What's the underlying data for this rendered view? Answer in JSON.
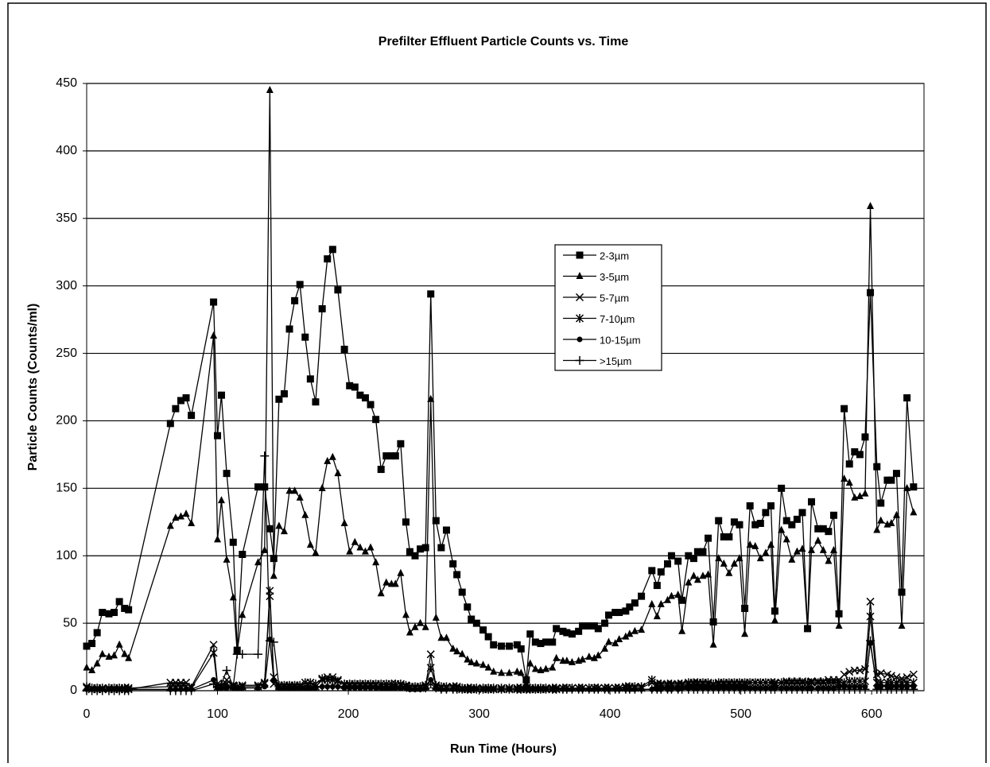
{
  "chart_data": {
    "type": "line",
    "title": "Prefilter Effluent Particle Counts vs. Time",
    "x_label": "Run Time (Hours)",
    "y_label": "Particle Counts (Counts/ml)",
    "xlim": [
      0,
      640
    ],
    "xticks": [
      0,
      100,
      200,
      300,
      400,
      500,
      600
    ],
    "ylim": [
      0,
      450
    ],
    "yticks": [
      0,
      50,
      100,
      150,
      200,
      250,
      300,
      350,
      400,
      450
    ],
    "grid": true,
    "legend": "center",
    "x": [
      0,
      4,
      8,
      12,
      17,
      21,
      25,
      29,
      32,
      64,
      68,
      72,
      76,
      80,
      97,
      100,
      103,
      107,
      112,
      115,
      119,
      131,
      136,
      140,
      143,
      147,
      151,
      155,
      159,
      163,
      167,
      171,
      175,
      180,
      184,
      188,
      192,
      197,
      201,
      205,
      209,
      213,
      217,
      221,
      225,
      229,
      233,
      236,
      240,
      244,
      247,
      251,
      255,
      259,
      263,
      267,
      271,
      275,
      280,
      283,
      287,
      291,
      294,
      298,
      303,
      307,
      311,
      317,
      323,
      329,
      332,
      336,
      339,
      343,
      347,
      351,
      356,
      359,
      364,
      367,
      371,
      376,
      379,
      384,
      388,
      391,
      396,
      399,
      404,
      407,
      412,
      415,
      419,
      424,
      432,
      436,
      439,
      444,
      447,
      452,
      455,
      460,
      464,
      467,
      471,
      475,
      479,
      483,
      487,
      491,
      495,
      499,
      503,
      507,
      511,
      515,
      519,
      523,
      526,
      531,
      535,
      539,
      543,
      547,
      551,
      554,
      559,
      563,
      567,
      571,
      575,
      579,
      583,
      587,
      591,
      595,
      599,
      604,
      607,
      612,
      615,
      619,
      623,
      627,
      632
    ],
    "series": [
      {
        "name": "2-3µm",
        "color": "#000000",
        "marker": "square",
        "values": [
          33,
          35,
          43,
          58,
          57,
          58,
          66,
          61,
          60,
          198,
          209,
          215,
          217,
          204,
          288,
          189,
          219,
          161,
          110,
          30,
          101,
          151,
          151,
          120,
          98,
          216,
          220,
          268,
          289,
          301,
          262,
          231,
          214,
          283,
          320,
          327,
          297,
          253,
          226,
          225,
          219,
          217,
          212,
          201,
          164,
          174,
          174,
          174,
          183,
          125,
          103,
          100,
          105,
          106,
          294,
          126,
          106,
          119,
          94,
          86,
          73,
          62,
          53,
          50,
          45,
          40,
          34,
          33,
          33,
          34,
          31,
          8,
          42,
          36,
          35,
          36,
          36,
          46,
          44,
          43,
          42,
          44,
          48,
          48,
          48,
          46,
          50,
          56,
          58,
          58,
          59,
          62,
          65,
          70,
          89,
          78,
          88,
          94,
          100,
          96,
          67,
          100,
          98,
          103,
          103,
          113,
          51,
          126,
          114,
          114,
          125,
          123,
          61,
          137,
          123,
          124,
          132,
          137,
          59,
          150,
          126,
          123,
          127,
          132,
          46,
          140,
          120,
          120,
          118,
          130,
          57,
          209,
          168,
          177,
          175,
          188,
          295,
          166,
          139,
          156,
          156,
          161,
          73,
          217,
          151
        ]
      },
      {
        "name": "3-5µm",
        "color": "#000000",
        "marker": "triangle",
        "values": [
          17,
          15,
          20,
          27,
          25,
          26,
          34,
          27,
          24,
          122,
          128,
          129,
          131,
          124,
          263,
          112,
          141,
          97,
          69,
          29,
          56,
          95,
          104,
          445,
          85,
          122,
          118,
          148,
          148,
          143,
          130,
          108,
          102,
          150,
          170,
          173,
          161,
          124,
          103,
          110,
          106,
          103,
          106,
          95,
          72,
          80,
          79,
          79,
          87,
          56,
          43,
          47,
          50,
          47,
          216,
          54,
          39,
          39,
          31,
          29,
          27,
          23,
          21,
          20,
          19,
          17,
          14,
          13,
          13,
          14,
          13,
          5,
          20,
          16,
          15,
          16,
          17,
          24,
          22,
          22,
          21,
          22,
          23,
          25,
          24,
          26,
          31,
          36,
          35,
          38,
          40,
          42,
          44,
          45,
          64,
          55,
          64,
          67,
          70,
          71,
          44,
          80,
          85,
          82,
          85,
          86,
          34,
          98,
          94,
          87,
          94,
          98,
          42,
          108,
          107,
          98,
          102,
          108,
          52,
          119,
          112,
          97,
          103,
          105,
          46,
          104,
          111,
          104,
          96,
          104,
          48,
          157,
          154,
          143,
          144,
          146,
          359,
          119,
          126,
          123,
          124,
          130,
          48,
          150,
          132
        ]
      },
      {
        "name": "5-7µm",
        "color": "#000000",
        "marker": "x",
        "values": [
          2,
          1,
          1,
          1,
          1,
          1,
          1,
          1,
          1,
          6,
          6,
          6,
          6,
          3,
          34,
          5,
          3,
          8,
          4,
          3,
          4,
          4,
          5,
          70,
          5,
          3,
          3,
          3,
          3,
          3,
          3,
          3,
          3,
          8,
          10,
          10,
          8,
          4,
          4,
          4,
          4,
          4,
          4,
          4,
          3,
          3,
          3,
          3,
          4,
          3,
          2,
          2,
          2,
          3,
          27,
          3,
          2,
          2,
          2,
          2,
          1,
          1,
          1,
          1,
          1,
          1,
          1,
          1,
          1,
          1,
          1,
          1,
          1,
          1,
          1,
          1,
          1,
          1,
          2,
          2,
          2,
          2,
          2,
          2,
          2,
          2,
          2,
          2,
          2,
          2,
          2,
          2,
          2,
          2,
          6,
          4,
          4,
          4,
          4,
          4,
          4,
          5,
          5,
          5,
          5,
          5,
          4,
          5,
          5,
          5,
          5,
          5,
          5,
          6,
          6,
          6,
          6,
          6,
          5,
          6,
          7,
          7,
          7,
          7,
          6,
          7,
          7,
          7,
          8,
          8,
          8,
          12,
          14,
          15,
          15,
          16,
          66,
          12,
          13,
          12,
          11,
          10,
          9,
          10,
          12
        ]
      },
      {
        "name": "7-10µm",
        "color": "#000000",
        "marker": "asterisk",
        "values": [
          3,
          2,
          2,
          2,
          2,
          2,
          2,
          2,
          2,
          3,
          3,
          3,
          3,
          2,
          28,
          3,
          3,
          5,
          3,
          3,
          3,
          3,
          6,
          74,
          10,
          4,
          4,
          4,
          4,
          4,
          6,
          6,
          5,
          9,
          8,
          8,
          7,
          5,
          5,
          5,
          5,
          5,
          5,
          5,
          5,
          5,
          5,
          5,
          5,
          4,
          3,
          3,
          3,
          4,
          17,
          4,
          3,
          3,
          3,
          3,
          2,
          2,
          2,
          2,
          2,
          2,
          2,
          2,
          2,
          2,
          2,
          2,
          2,
          2,
          2,
          2,
          2,
          2,
          2,
          2,
          2,
          2,
          2,
          2,
          2,
          2,
          2,
          2,
          2,
          2,
          3,
          3,
          3,
          3,
          8,
          5,
          5,
          5,
          5,
          5,
          5,
          6,
          6,
          6,
          6,
          6,
          5,
          6,
          6,
          6,
          6,
          6,
          6,
          6,
          6,
          6,
          6,
          6,
          6,
          6,
          6,
          6,
          6,
          6,
          6,
          6,
          6,
          6,
          6,
          6,
          6,
          6,
          7,
          7,
          7,
          7,
          55,
          6,
          6,
          6,
          6,
          6,
          6,
          6,
          6
        ]
      },
      {
        "name": "10-15µm",
        "color": "#000000",
        "marker": "circle",
        "values": [
          1,
          1,
          1,
          1,
          1,
          1,
          1,
          1,
          1,
          1,
          1,
          1,
          1,
          1,
          8,
          2,
          2,
          2,
          2,
          2,
          2,
          2,
          3,
          38,
          8,
          2,
          2,
          2,
          2,
          2,
          2,
          2,
          2,
          3,
          3,
          3,
          3,
          2,
          2,
          2,
          2,
          2,
          2,
          2,
          2,
          2,
          2,
          2,
          2,
          2,
          1,
          1,
          1,
          2,
          8,
          2,
          1,
          1,
          1,
          1,
          1,
          1,
          1,
          1,
          1,
          1,
          1,
          1,
          1,
          1,
          1,
          1,
          1,
          1,
          1,
          1,
          1,
          1,
          1,
          1,
          1,
          1,
          1,
          1,
          1,
          1,
          1,
          1,
          1,
          1,
          1,
          1,
          1,
          1,
          1,
          1,
          1,
          1,
          1,
          1,
          2,
          2,
          2,
          2,
          2,
          2,
          2,
          2,
          2,
          2,
          2,
          2,
          2,
          2,
          2,
          2,
          2,
          2,
          2,
          2,
          2,
          2,
          2,
          2,
          2,
          2,
          2,
          2,
          2,
          2,
          3,
          3,
          3,
          3,
          3,
          3,
          35,
          3,
          3,
          3,
          3,
          3,
          3,
          3,
          3
        ]
      },
      {
        "name": ">15µm",
        "color": "#000000",
        "marker": "plus",
        "values": [
          0,
          0,
          0,
          0,
          0,
          0,
          0,
          0,
          0,
          0,
          0,
          0,
          0,
          0,
          5,
          3,
          5,
          15,
          3,
          27,
          27,
          27,
          174,
          37,
          36,
          3,
          3,
          3,
          3,
          3,
          3,
          3,
          3,
          3,
          3,
          3,
          3,
          3,
          3,
          3,
          3,
          3,
          3,
          3,
          3,
          3,
          3,
          3,
          3,
          3,
          2,
          2,
          2,
          2,
          5,
          2,
          1,
          1,
          1,
          1,
          1,
          1,
          1,
          1,
          1,
          1,
          1,
          1,
          1,
          1,
          1,
          1,
          1,
          1,
          1,
          1,
          1,
          1,
          1,
          1,
          1,
          1,
          1,
          1,
          1,
          1,
          1,
          1,
          1,
          1,
          1,
          1,
          1,
          1,
          1,
          1,
          1,
          1,
          1,
          1,
          1,
          1,
          1,
          1,
          1,
          1,
          1,
          1,
          1,
          1,
          1,
          1,
          1,
          1,
          1,
          1,
          1,
          1,
          1,
          1,
          1,
          1,
          1,
          1,
          1,
          1,
          1,
          1,
          1,
          1,
          1,
          1,
          1,
          1,
          1,
          1,
          37,
          1,
          1,
          1,
          1,
          1,
          1,
          1,
          1
        ]
      }
    ]
  }
}
